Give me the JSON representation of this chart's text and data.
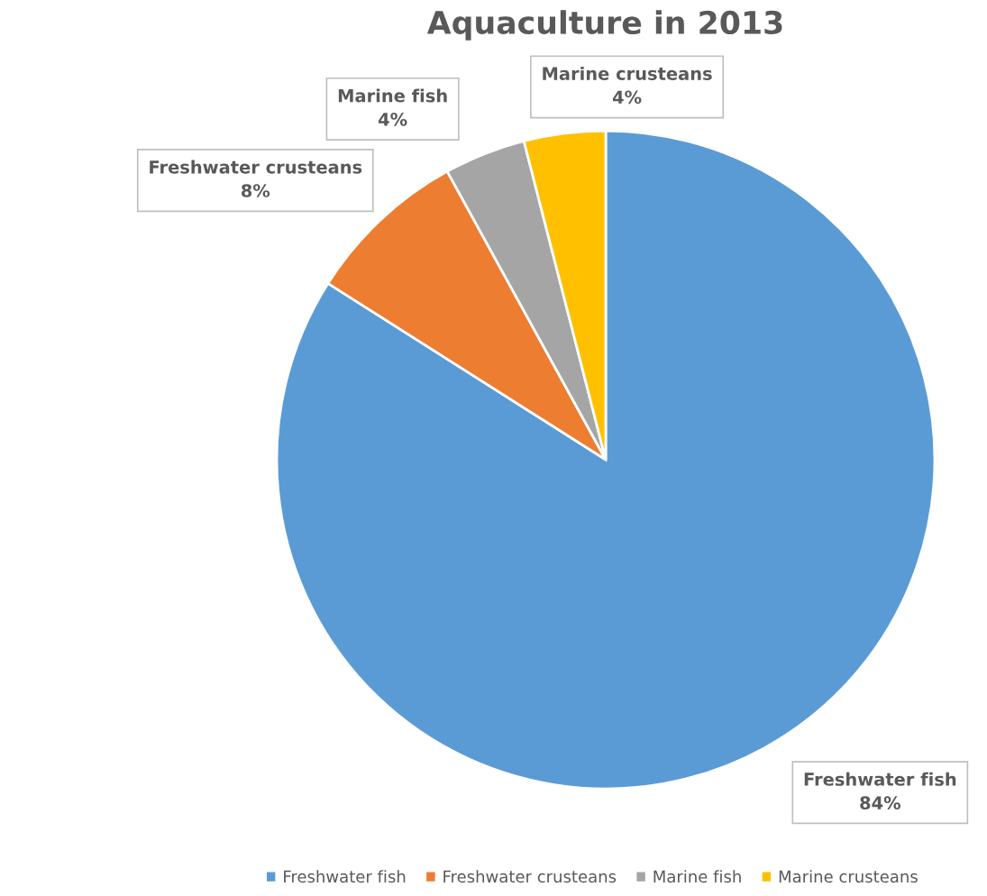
{
  "chart_data": {
    "type": "pie",
    "title": "Aquaculture in 2013",
    "categories": [
      "Freshwater fish",
      "Freshwater crusteans",
      "Marine fish",
      "Marine crusteans"
    ],
    "values": [
      84,
      8,
      4,
      4
    ],
    "value_labels": [
      "84%",
      "8%",
      "4%",
      "4%"
    ],
    "colors": [
      "#5b9bd5",
      "#ed7d31",
      "#a5a5a5",
      "#ffc000"
    ],
    "legend": "bottom"
  }
}
